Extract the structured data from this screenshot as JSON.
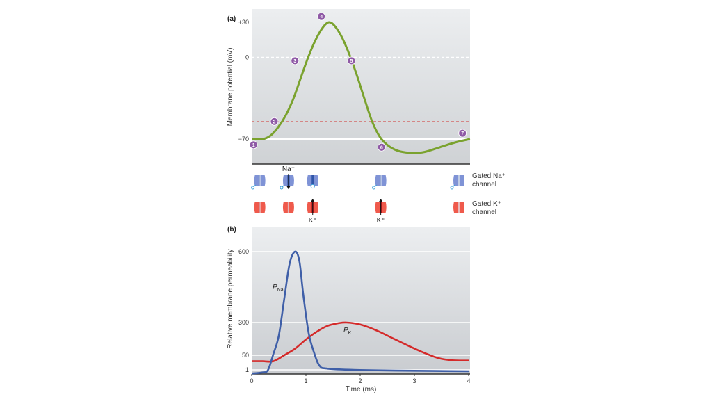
{
  "chart_data": [
    {
      "id": "a",
      "type": "line",
      "panel_label": "(a)",
      "title": "",
      "ylabel": "Membrane potential (mV)",
      "xlabel": "",
      "ylim": [
        -90,
        42
      ],
      "yticks": [
        {
          "value": 30,
          "label": "+30"
        },
        {
          "value": 0,
          "label": "0"
        },
        {
          "value": -70,
          "label": "−70"
        }
      ],
      "reference_lines": [
        {
          "name": "zero",
          "value": 0,
          "style": "dashed",
          "color": "#ffffff"
        },
        {
          "name": "threshold",
          "value": -55,
          "style": "dashed",
          "color": "#d46a6a"
        },
        {
          "name": "rest",
          "value": -70,
          "style": "solid",
          "color": "#ffffff"
        }
      ],
      "series": [
        {
          "name": "Membrane potential",
          "color": "#7aa22e",
          "points": [
            [
              0,
              -70
            ],
            [
              0.3,
              -70
            ],
            [
              0.5,
              -67
            ],
            [
              0.7,
              -60
            ],
            [
              0.9,
              -50
            ],
            [
              1.1,
              -36
            ],
            [
              1.3,
              -18
            ],
            [
              1.5,
              0
            ],
            [
              1.7,
              15
            ],
            [
              1.9,
              26
            ],
            [
              2.05,
              30
            ],
            [
              2.2,
              27
            ],
            [
              2.4,
              17
            ],
            [
              2.6,
              2
            ],
            [
              2.8,
              -16
            ],
            [
              3.0,
              -36
            ],
            [
              3.2,
              -55
            ],
            [
              3.4,
              -68
            ],
            [
              3.6,
              -75
            ],
            [
              3.8,
              -79
            ],
            [
              4.0,
              -81
            ],
            [
              4.3,
              -82
            ],
            [
              4.6,
              -81
            ],
            [
              5.0,
              -77
            ],
            [
              5.4,
              -73
            ],
            [
              5.8,
              -70
            ]
          ]
        }
      ],
      "xlim": [
        0,
        5.8
      ],
      "markers": [
        {
          "label": "1",
          "x": 0.05,
          "y": -75
        },
        {
          "label": "2",
          "x": 0.6,
          "y": -55
        },
        {
          "label": "3",
          "x": 1.15,
          "y": -3
        },
        {
          "label": "4",
          "x": 1.85,
          "y": 35
        },
        {
          "label": "5",
          "x": 2.65,
          "y": -3
        },
        {
          "label": "6",
          "x": 3.45,
          "y": -77
        },
        {
          "label": "7",
          "x": 5.6,
          "y": -65
        }
      ]
    },
    {
      "id": "b",
      "type": "line",
      "panel_label": "(b)",
      "title": "",
      "ylabel": "Relative membrane permeability",
      "xlabel": "Time (ms)",
      "xlim": [
        0,
        4
      ],
      "xticks": [
        "0",
        "1",
        "2",
        "3",
        "4"
      ],
      "yticks": [
        {
          "value": 600,
          "label": "600"
        },
        {
          "value": 300,
          "label": "300"
        },
        {
          "value": 50,
          "label": "50"
        },
        {
          "value": 1,
          "label": "1"
        }
      ],
      "grid": true,
      "series": [
        {
          "name": "P_Na",
          "label_main": "P",
          "label_sub": "Na",
          "color": "#3f5fa8",
          "points": [
            [
              0,
              -15
            ],
            [
              0.2,
              -10
            ],
            [
              0.3,
              0
            ],
            [
              0.4,
              60
            ],
            [
              0.5,
              200
            ],
            [
              0.6,
              400
            ],
            [
              0.7,
              550
            ],
            [
              0.8,
              600
            ],
            [
              0.88,
              560
            ],
            [
              0.95,
              420
            ],
            [
              1.05,
              220
            ],
            [
              1.15,
              70
            ],
            [
              1.25,
              15
            ],
            [
              1.4,
              5
            ],
            [
              2,
              0
            ],
            [
              3,
              -3
            ],
            [
              4,
              -5
            ]
          ]
        },
        {
          "name": "P_K",
          "label_main": "P",
          "label_sub": "K",
          "color": "#d42a2a",
          "points": [
            [
              0,
              30
            ],
            [
              0.2,
              30
            ],
            [
              0.4,
              30
            ],
            [
              0.6,
              50
            ],
            [
              0.8,
              100
            ],
            [
              1.0,
              170
            ],
            [
              1.2,
              230
            ],
            [
              1.4,
              275
            ],
            [
              1.6,
              295
            ],
            [
              1.75,
              300
            ],
            [
              2.0,
              285
            ],
            [
              2.3,
              240
            ],
            [
              2.6,
              180
            ],
            [
              2.9,
              120
            ],
            [
              3.2,
              65
            ],
            [
              3.45,
              40
            ],
            [
              3.7,
              33
            ],
            [
              4.0,
              32
            ]
          ]
        }
      ]
    }
  ],
  "channels": {
    "na_row": [
      {
        "state": "closed",
        "x_ms": 0.05
      },
      {
        "state": "open",
        "x_ms": 0.62,
        "ion_label": "Na⁺",
        "flow": "down"
      },
      {
        "state": "inactivated",
        "x_ms": 1.1
      },
      {
        "state": "closed",
        "x_ms": 2.45
      },
      {
        "state": "closed",
        "x_ms": 4.0
      }
    ],
    "k_row": [
      {
        "state": "closed",
        "x_ms": 0.05
      },
      {
        "state": "closed",
        "x_ms": 0.62
      },
      {
        "state": "open",
        "x_ms": 1.1,
        "ion_label": "K⁺",
        "flow": "up"
      },
      {
        "state": "open",
        "x_ms": 2.45,
        "ion_label": "K⁺",
        "flow": "up"
      },
      {
        "state": "closed",
        "x_ms": 4.0
      }
    ],
    "legend": {
      "na_line1": "Gated Na⁺",
      "na_line2": "channel",
      "k_line1": "Gated K⁺",
      "k_line2": "channel"
    },
    "colors": {
      "na": "#7f93d6",
      "na_dark": "#2f55a8",
      "k": "#ef5a4c",
      "k_dark": "#b5181b"
    }
  }
}
